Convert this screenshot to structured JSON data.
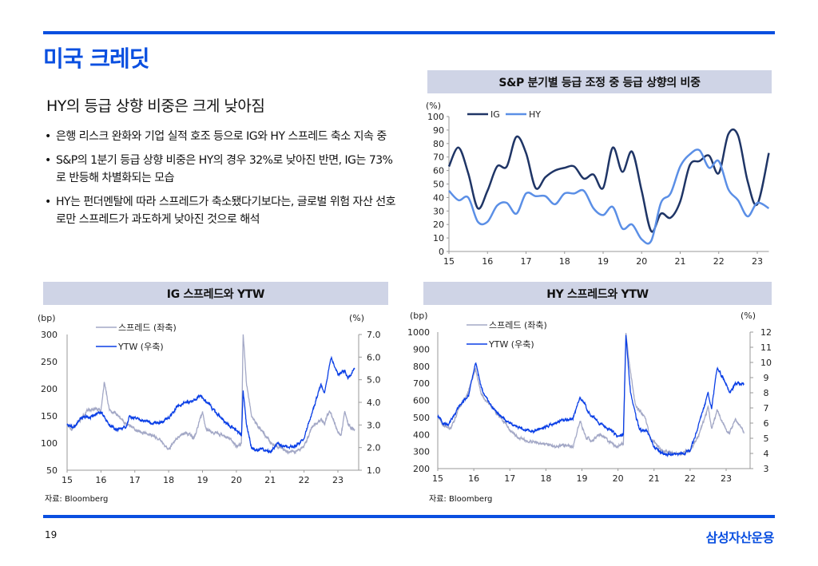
{
  "header": {
    "title": "미국 크레딧"
  },
  "left": {
    "subtitle": "HY의 등급 상향 비중은 크게 낮아짐",
    "bullets": [
      "은행 리스크 완화와 기업 실적 호조 등으로 IG와 HY 스프레드 축소 지속 중",
      "S&P의 1분기 등급 상향 비중은 HY의 경우 32%로 낮아진 반면, IG는 73%로 반등해 차별화되는 모습",
      "HY는 펀더멘탈에 따라 스프레드가 축소됐다기보다는, 글로벌 위험 자산 선호로만 스프레드가 과도하게 낮아진 것으로 해석"
    ]
  },
  "footer": {
    "page": "19",
    "logo": "삼성자산운용",
    "source_left": "자료: Bloomberg",
    "source_right": "자료: Bloomberg"
  },
  "colors": {
    "accent": "#0a4fe0",
    "ig": "#1f3566",
    "hy": "#5b8fe6",
    "spread": "#a3a8c6",
    "ytw": "#0a3fe6",
    "band": "#cfd4e6"
  },
  "chart_data": [
    {
      "type": "line",
      "title": "S&P 분기별 등급 조정 중 등급 상향의 비중",
      "ylabel": "(%)",
      "ylim": [
        0,
        100
      ],
      "yticks": [
        "0",
        "10",
        "20",
        "30",
        "40",
        "50",
        "60",
        "70",
        "80",
        "90",
        "100"
      ],
      "xlim": [
        15,
        23.3
      ],
      "xticks": [
        "15",
        "16",
        "17",
        "18",
        "19",
        "20",
        "21",
        "22",
        "23"
      ],
      "legend": "top-left",
      "x": [
        15,
        15.25,
        15.5,
        15.75,
        16,
        16.25,
        16.5,
        16.75,
        17,
        17.25,
        17.5,
        17.75,
        18,
        18.25,
        18.5,
        18.75,
        19,
        19.25,
        19.5,
        19.75,
        20,
        20.25,
        20.5,
        20.75,
        21,
        21.25,
        21.5,
        21.75,
        22,
        22.25,
        22.5,
        22.75,
        23,
        23.3
      ],
      "series": [
        {
          "name": "IG",
          "values": [
            63,
            77,
            58,
            32,
            45,
            63,
            63,
            85,
            73,
            47,
            55,
            60,
            62,
            63,
            54,
            57,
            47,
            77,
            59,
            74,
            45,
            15,
            28,
            25,
            37,
            64,
            67,
            71,
            58,
            87,
            86,
            52,
            35,
            73
          ]
        },
        {
          "name": "HY",
          "values": [
            45,
            38,
            40,
            22,
            22,
            34,
            36,
            28,
            43,
            41,
            41,
            35,
            43,
            43,
            45,
            32,
            27,
            33,
            17,
            20,
            9,
            8,
            36,
            43,
            63,
            72,
            75,
            62,
            67,
            46,
            38,
            26,
            36,
            32
          ]
        }
      ]
    },
    {
      "type": "line",
      "title": "IG 스프레드와 YTW",
      "ylabel_left": "(bp)",
      "ylabel_right": "(%)",
      "ylim_left": [
        50,
        300
      ],
      "yticks_left": [
        "50",
        "100",
        "150",
        "200",
        "250",
        "300"
      ],
      "ylim_right": [
        1,
        7
      ],
      "yticks_right": [
        "1.0",
        "2.0",
        "3.0",
        "4.0",
        "5.0",
        "6.0",
        "7.0"
      ],
      "xlim": [
        15,
        23.5
      ],
      "xticks": [
        "15",
        "16",
        "17",
        "18",
        "19",
        "20",
        "21",
        "22",
        "23"
      ],
      "series": [
        {
          "name": "스프레드 (좌축)",
          "axis": "left",
          "points": [
            [
              15,
              135
            ],
            [
              15.1,
              125
            ],
            [
              15.3,
              135
            ],
            [
              15.6,
              160
            ],
            [
              15.8,
              165
            ],
            [
              16,
              160
            ],
            [
              16.1,
              215
            ],
            [
              16.25,
              160
            ],
            [
              16.5,
              150
            ],
            [
              16.75,
              135
            ],
            [
              17,
              125
            ],
            [
              17.5,
              115
            ],
            [
              17.75,
              105
            ],
            [
              18,
              90
            ],
            [
              18.25,
              110
            ],
            [
              18.5,
              120
            ],
            [
              18.75,
              110
            ],
            [
              19,
              155
            ],
            [
              19.1,
              125
            ],
            [
              19.5,
              115
            ],
            [
              19.75,
              110
            ],
            [
              20,
              95
            ],
            [
              20.15,
              100
            ],
            [
              20.2,
              300
            ],
            [
              20.3,
              210
            ],
            [
              20.45,
              150
            ],
            [
              20.6,
              135
            ],
            [
              20.8,
              120
            ],
            [
              21,
              100
            ],
            [
              21.25,
              92
            ],
            [
              21.5,
              85
            ],
            [
              21.75,
              85
            ],
            [
              22,
              95
            ],
            [
              22.25,
              130
            ],
            [
              22.5,
              145
            ],
            [
              22.6,
              135
            ],
            [
              22.75,
              160
            ],
            [
              23,
              120
            ],
            [
              23.1,
              115
            ],
            [
              23.2,
              160
            ],
            [
              23.3,
              135
            ],
            [
              23.5,
              125
            ]
          ]
        },
        {
          "name": "YTW (우축)",
          "axis": "right",
          "points": [
            [
              15,
              3.0
            ],
            [
              15.2,
              2.9
            ],
            [
              15.4,
              3.3
            ],
            [
              15.75,
              3.4
            ],
            [
              16,
              3.6
            ],
            [
              16.25,
              3.0
            ],
            [
              16.5,
              2.8
            ],
            [
              16.75,
              2.9
            ],
            [
              16.85,
              3.4
            ],
            [
              17,
              3.3
            ],
            [
              17.5,
              3.1
            ],
            [
              17.75,
              3.1
            ],
            [
              18,
              3.3
            ],
            [
              18.25,
              3.8
            ],
            [
              18.5,
              4.0
            ],
            [
              18.75,
              4.1
            ],
            [
              18.95,
              4.3
            ],
            [
              19.25,
              3.8
            ],
            [
              19.5,
              3.4
            ],
            [
              19.75,
              3.0
            ],
            [
              20,
              2.8
            ],
            [
              20.15,
              2.5
            ],
            [
              20.2,
              4.5
            ],
            [
              20.3,
              3.0
            ],
            [
              20.45,
              2.0
            ],
            [
              20.6,
              1.9
            ],
            [
              20.8,
              1.9
            ],
            [
              21,
              1.8
            ],
            [
              21.2,
              2.2
            ],
            [
              21.5,
              2.0
            ],
            [
              21.75,
              2.1
            ],
            [
              22,
              2.4
            ],
            [
              22.25,
              3.6
            ],
            [
              22.5,
              4.8
            ],
            [
              22.6,
              4.4
            ],
            [
              22.8,
              6.0
            ],
            [
              23,
              5.2
            ],
            [
              23.2,
              5.4
            ],
            [
              23.3,
              5.1
            ],
            [
              23.5,
              5.5
            ]
          ]
        }
      ]
    },
    {
      "type": "line",
      "title": "HY 스프레드와 YTW",
      "ylabel_left": "(bp)",
      "ylabel_right": "(%)",
      "ylim_left": [
        200,
        1000
      ],
      "yticks_left": [
        "200",
        "300",
        "400",
        "500",
        "600",
        "700",
        "800",
        "900",
        "1000"
      ],
      "ylim_right": [
        3,
        12
      ],
      "yticks_right": [
        "3",
        "4",
        "5",
        "6",
        "7",
        "8",
        "9",
        "10",
        "11",
        "12"
      ],
      "xlim": [
        15,
        23.5
      ],
      "xticks": [
        "15",
        "16",
        "17",
        "18",
        "19",
        "20",
        "21",
        "22",
        "23"
      ],
      "series": [
        {
          "name": "스프레드 (좌축)",
          "axis": "left",
          "points": [
            [
              15,
              520
            ],
            [
              15.15,
              450
            ],
            [
              15.35,
              430
            ],
            [
              15.6,
              560
            ],
            [
              15.8,
              620
            ],
            [
              16.05,
              780
            ],
            [
              16.2,
              640
            ],
            [
              16.5,
              560
            ],
            [
              16.75,
              500
            ],
            [
              17,
              430
            ],
            [
              17.25,
              380
            ],
            [
              17.5,
              360
            ],
            [
              17.75,
              360
            ],
            [
              18,
              340
            ],
            [
              18.25,
              330
            ],
            [
              18.5,
              340
            ],
            [
              18.75,
              320
            ],
            [
              18.95,
              480
            ],
            [
              19.1,
              390
            ],
            [
              19.25,
              360
            ],
            [
              19.5,
              400
            ],
            [
              19.75,
              360
            ],
            [
              20,
              330
            ],
            [
              20.15,
              350
            ],
            [
              20.22,
              1000
            ],
            [
              20.35,
              760
            ],
            [
              20.5,
              560
            ],
            [
              20.75,
              500
            ],
            [
              20.9,
              380
            ],
            [
              21.25,
              300
            ],
            [
              21.5,
              290
            ],
            [
              21.75,
              290
            ],
            [
              22,
              310
            ],
            [
              22.25,
              400
            ],
            [
              22.5,
              560
            ],
            [
              22.6,
              430
            ],
            [
              22.75,
              540
            ],
            [
              23,
              430
            ],
            [
              23.1,
              410
            ],
            [
              23.25,
              490
            ],
            [
              23.5,
              410
            ]
          ]
        },
        {
          "name": "YTW (우축)",
          "axis": "right",
          "points": [
            [
              15,
              6.5
            ],
            [
              15.15,
              6.0
            ],
            [
              15.3,
              5.9
            ],
            [
              15.6,
              7.2
            ],
            [
              15.85,
              7.8
            ],
            [
              16.05,
              10.0
            ],
            [
              16.25,
              8.0
            ],
            [
              16.5,
              7.1
            ],
            [
              16.75,
              6.4
            ],
            [
              17,
              6.0
            ],
            [
              17.25,
              5.7
            ],
            [
              17.5,
              5.5
            ],
            [
              17.75,
              5.5
            ],
            [
              18,
              5.8
            ],
            [
              18.25,
              6.0
            ],
            [
              18.5,
              6.2
            ],
            [
              18.75,
              6.3
            ],
            [
              18.95,
              7.7
            ],
            [
              19.25,
              6.5
            ],
            [
              19.5,
              6.0
            ],
            [
              19.75,
              5.6
            ],
            [
              20,
              5.1
            ],
            [
              20.15,
              5.3
            ],
            [
              20.22,
              11.7
            ],
            [
              20.35,
              8.0
            ],
            [
              20.5,
              6.4
            ],
            [
              20.6,
              5.5
            ],
            [
              20.8,
              5.5
            ],
            [
              21,
              4.4
            ],
            [
              21.25,
              4.0
            ],
            [
              21.5,
              3.9
            ],
            [
              21.75,
              4.0
            ],
            [
              22,
              4.2
            ],
            [
              22.25,
              6.0
            ],
            [
              22.5,
              8.0
            ],
            [
              22.6,
              7.0
            ],
            [
              22.75,
              9.7
            ],
            [
              23,
              8.6
            ],
            [
              23.1,
              8.0
            ],
            [
              23.25,
              8.6
            ],
            [
              23.5,
              8.6
            ]
          ]
        }
      ]
    }
  ]
}
